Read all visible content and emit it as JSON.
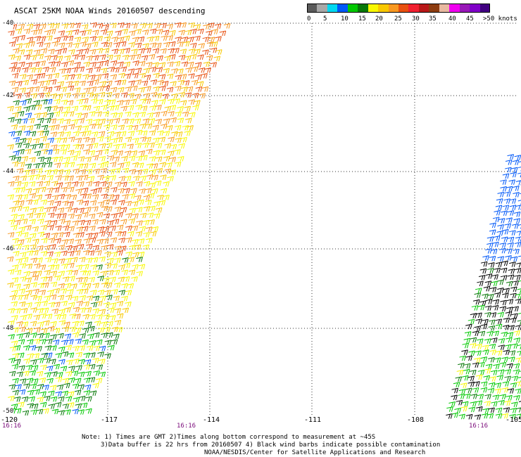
{
  "title": "ASCAT 25KM NOAA Winds 20160507 descending",
  "colorbar": {
    "segments": [
      {
        "color": "#5a5a5a"
      },
      {
        "color": "#a8a8a8"
      },
      {
        "color": "#00d8f0"
      },
      {
        "color": "#0058f8"
      },
      {
        "color": "#00c800"
      },
      {
        "color": "#087808"
      },
      {
        "color": "#f8f800"
      },
      {
        "color": "#f8c800"
      },
      {
        "color": "#f89820"
      },
      {
        "color": "#e85010"
      },
      {
        "color": "#f02030"
      },
      {
        "color": "#b81818"
      },
      {
        "color": "#8c3c10"
      },
      {
        "color": "#e8b8a0"
      },
      {
        "color": "#f000f0"
      },
      {
        "color": "#9818b8"
      },
      {
        "color": "#8000c8"
      },
      {
        "color": "#400080"
      }
    ],
    "labels": [
      "0",
      "5",
      "10",
      "15",
      "20",
      "25",
      "30",
      "35",
      "40",
      "45",
      ">50 knots"
    ]
  },
  "map": {
    "lon_labels": [
      "-120",
      "-117",
      "-114",
      "-111",
      "-108",
      "-105"
    ],
    "lat_labels": [
      "-40",
      "-42",
      "-44",
      "-46",
      "-48",
      "-50"
    ],
    "pass_times": [
      "16:16",
      "16:16",
      "16:16"
    ]
  },
  "notes": [
    "Note: 1) Times are GMT 2)Times along bottom correspond to measurement at ~45S",
    "3)Data buffer is 22 hrs from 20160507 4) Black wind barbs indicate possible contamination",
    "NOAA/NESDIS/Center for Satellite Applications and Research"
  ]
}
